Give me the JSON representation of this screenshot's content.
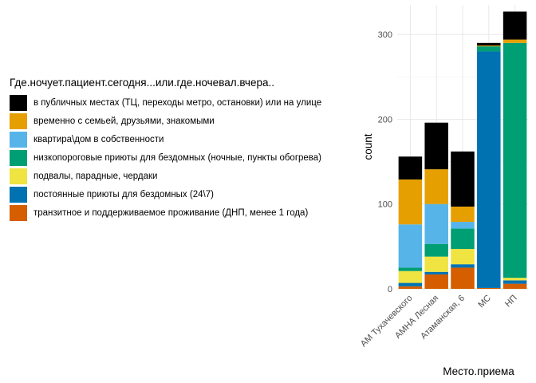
{
  "chart_data": {
    "type": "bar",
    "stacked": true,
    "title": "",
    "xlabel": "Место.приема",
    "ylabel": "count",
    "ylim": [
      0,
      335
    ],
    "yticks": [
      0,
      100,
      200,
      300
    ],
    "grid": true,
    "legend_position": "left",
    "legend_title": "Где.ночует.пациент.сегодня...или.где.ночевал.вчера..",
    "categories": [
      "АМ Тухачевского",
      "АМНА Лесная",
      "Атаманская, 6",
      "МС",
      "НП"
    ],
    "series": [
      {
        "name": "в публичных местах (ТЦ, переходы метро, остановки) или на улице",
        "color": "#000000",
        "values": [
          27,
          55,
          65,
          3,
          33
        ]
      },
      {
        "name": "временно с семьей, друзьями, знакомыми",
        "color": "#E69F00",
        "values": [
          53,
          41,
          18,
          1,
          4
        ]
      },
      {
        "name": "квартира\\дом в собственности",
        "color": "#56B4E9",
        "values": [
          51,
          47,
          8,
          0,
          0
        ]
      },
      {
        "name": "низкопороговые приюты для бездомных (ночные, пункты обогрева)",
        "color": "#009E73",
        "values": [
          4,
          15,
          24,
          6,
          277
        ]
      },
      {
        "name": "подвалы, парадные, чердаки",
        "color": "#F0E442",
        "values": [
          14,
          18,
          18,
          0,
          3
        ]
      },
      {
        "name": "постоянные приюты для бездомных (24\\7)",
        "color": "#0072B2",
        "values": [
          4,
          3,
          4,
          279,
          4
        ]
      },
      {
        "name": "транзитное и поддерживаемое проживание (ДНП, менее 1 года)",
        "color": "#D55E00",
        "values": [
          3,
          17,
          25,
          1,
          6
        ]
      }
    ]
  }
}
